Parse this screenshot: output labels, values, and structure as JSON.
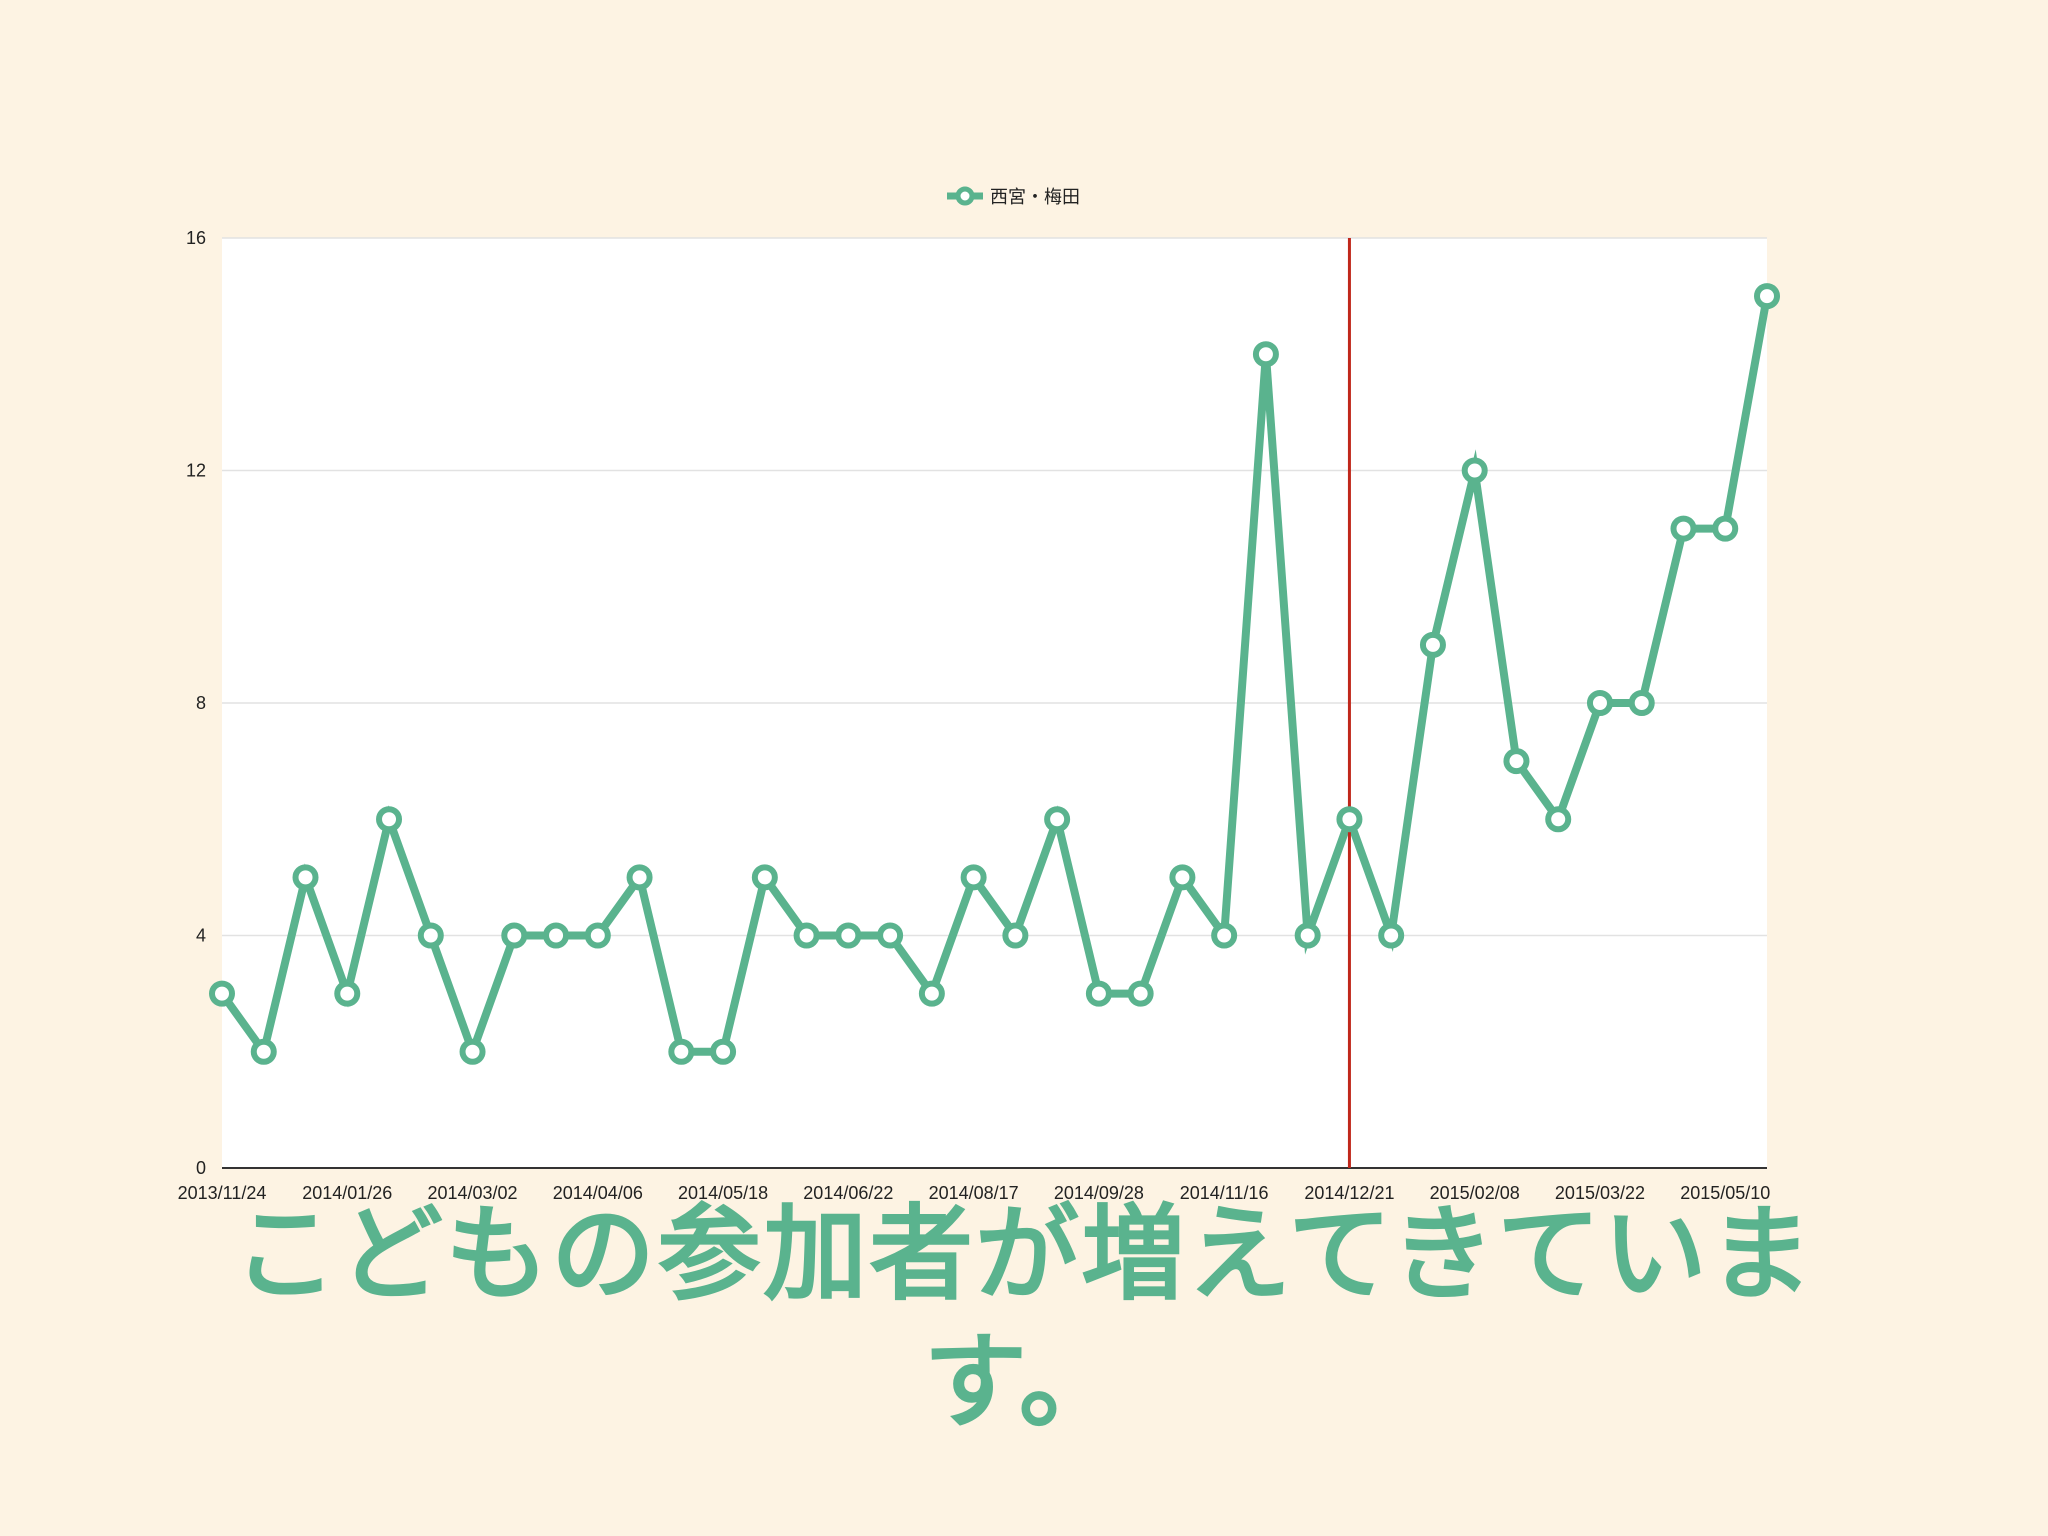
{
  "colors": {
    "background": "#fdf3e3",
    "series": "#5ab38e",
    "marker_line": "#c0271b",
    "grid": "#e2e2e2",
    "plot_area": "#ffffff"
  },
  "caption": "こどもの参加者が増えてきています。",
  "chart_data": {
    "type": "line",
    "title": "",
    "xlabel": "",
    "ylabel": "",
    "ylim": [
      0,
      16
    ],
    "yticks": [
      0,
      4,
      8,
      12,
      16
    ],
    "grid": true,
    "legend": "top-center",
    "x_tick_labels": [
      "2013/11/24",
      "2014/01/26",
      "2014/03/02",
      "2014/04/06",
      "2014/05/18",
      "2014/06/22",
      "2014/08/17",
      "2014/09/28",
      "2014/11/16",
      "2014/12/21",
      "2015/02/08",
      "2015/03/22",
      "2015/05/10"
    ],
    "vertical_marker_at_label": "2014/12/21",
    "series": [
      {
        "name": "西宮・梅田",
        "values": [
          3,
          2,
          5,
          3,
          6,
          4,
          2,
          4,
          4,
          4,
          5,
          2,
          2,
          5,
          4,
          4,
          4,
          3,
          5,
          4,
          6,
          3,
          3,
          5,
          4,
          14,
          4,
          6,
          4,
          9,
          12,
          7,
          6,
          8,
          8,
          11,
          11,
          15
        ]
      }
    ]
  }
}
